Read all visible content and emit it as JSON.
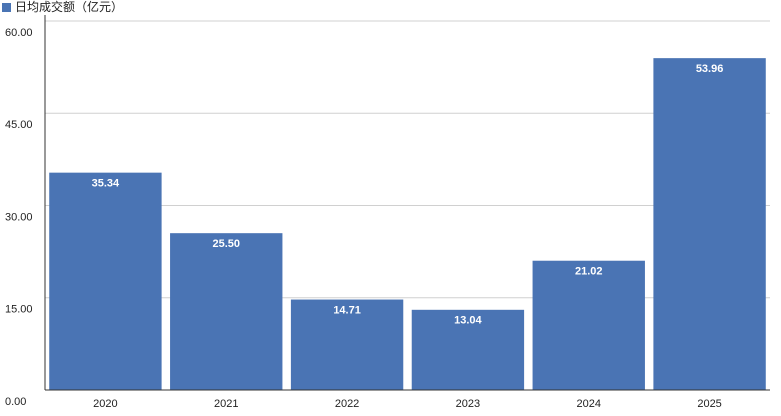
{
  "chart_data": {
    "type": "bar",
    "categories": [
      "2020",
      "2021",
      "2022",
      "2023",
      "2024",
      "2025"
    ],
    "series": [
      {
        "name": "日均成交额（亿元）",
        "color": "#4a74b4",
        "values": [
          35.34,
          25.5,
          14.71,
          13.04,
          21.02,
          53.96
        ],
        "value_labels": [
          "35.34",
          "25.50",
          "14.71",
          "13.04",
          "21.02",
          "53.96"
        ]
      }
    ],
    "ylim": [
      0,
      60
    ],
    "yticks": [
      {
        "value": 0,
        "label": "0.00"
      },
      {
        "value": 15,
        "label": "15.00"
      },
      {
        "value": 30,
        "label": "30.00"
      },
      {
        "value": 45,
        "label": "45.00"
      },
      {
        "value": 60,
        "label": "60.00"
      }
    ],
    "grid": true,
    "legend": "top-left"
  }
}
